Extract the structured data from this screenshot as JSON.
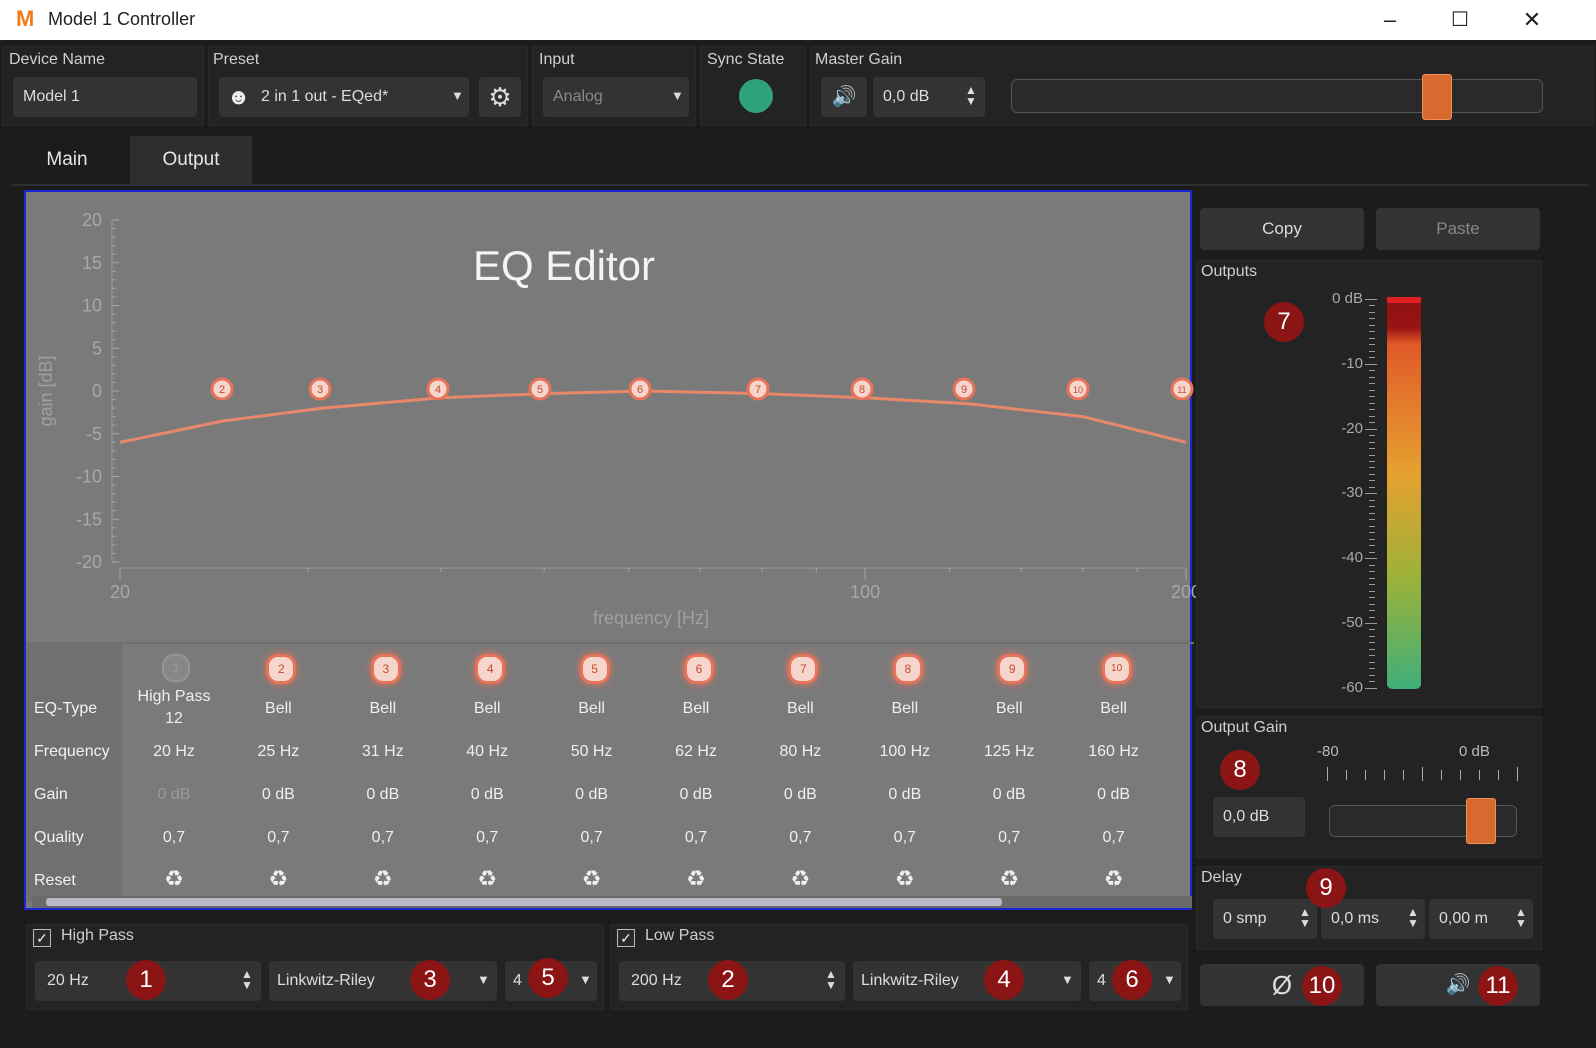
{
  "window": {
    "title": "Model 1 Controller",
    "logo": "M",
    "minimize": "–",
    "maximize": "☐",
    "close": "✕"
  },
  "header": {
    "device_name_label": "Device Name",
    "device_name_value": "Model 1",
    "preset_label": "Preset",
    "preset_value": "2 in 1 out - EQed*",
    "input_label": "Input",
    "input_value": "Analog",
    "sync_label": "Sync State",
    "sync_color": "#2fa27a",
    "master_gain_label": "Master Gain",
    "master_gain_value": "0,0 dB",
    "master_gain_level": 0.8
  },
  "tabs": [
    {
      "label": "Main"
    },
    {
      "label": "Output"
    }
  ],
  "eq": {
    "title": "EQ Editor",
    "ylabel": "gain [dB]",
    "xlabel": "frequency [Hz]",
    "y_ticks": [
      "20",
      "15",
      "10",
      "5",
      "0",
      "-5",
      "-10",
      "-15",
      "-20"
    ],
    "x_ticks": [
      "20",
      "100",
      "200"
    ],
    "markers": [
      "2",
      "3",
      "4",
      "5",
      "6",
      "7",
      "8",
      "9",
      "10",
      "11"
    ]
  },
  "chart_data": {
    "type": "line",
    "title": "EQ Editor",
    "xlabel": "frequency [Hz]",
    "ylabel": "gain [dB]",
    "xscale": "log",
    "xlim": [
      20,
      200
    ],
    "ylim": [
      -20,
      20
    ],
    "grid": true,
    "x": [
      20,
      25,
      31,
      40,
      50,
      62,
      80,
      100,
      125,
      160,
      200
    ],
    "y": [
      -6,
      -3.5,
      -2,
      -0.8,
      -0.3,
      0,
      -0.3,
      -0.8,
      -1.5,
      -3,
      -6
    ]
  },
  "table": {
    "row_labels": [
      "EQ-Type",
      "Frequency",
      "Gain",
      "Quality",
      "Reset"
    ],
    "bands": [
      {
        "num": "1",
        "type": "High Pass",
        "type2": "12",
        "freq": "20 Hz",
        "gain": "0 dB",
        "q": "0,7"
      },
      {
        "num": "2",
        "type": "Bell",
        "type2": "",
        "freq": "25 Hz",
        "gain": "0 dB",
        "q": "0,7"
      },
      {
        "num": "3",
        "type": "Bell",
        "type2": "",
        "freq": "31 Hz",
        "gain": "0 dB",
        "q": "0,7"
      },
      {
        "num": "4",
        "type": "Bell",
        "type2": "",
        "freq": "40 Hz",
        "gain": "0 dB",
        "q": "0,7"
      },
      {
        "num": "5",
        "type": "Bell",
        "type2": "",
        "freq": "50 Hz",
        "gain": "0 dB",
        "q": "0,7"
      },
      {
        "num": "6",
        "type": "Bell",
        "type2": "",
        "freq": "62 Hz",
        "gain": "0 dB",
        "q": "0,7"
      },
      {
        "num": "7",
        "type": "Bell",
        "type2": "",
        "freq": "80 Hz",
        "gain": "0 dB",
        "q": "0,7"
      },
      {
        "num": "8",
        "type": "Bell",
        "type2": "",
        "freq": "100 Hz",
        "gain": "0 dB",
        "q": "0,7"
      },
      {
        "num": "9",
        "type": "Bell",
        "type2": "",
        "freq": "125 Hz",
        "gain": "0 dB",
        "q": "0,7"
      },
      {
        "num": "10",
        "type": "Bell",
        "type2": "",
        "freq": "160 Hz",
        "gain": "0 dB",
        "q": "0,7"
      }
    ]
  },
  "filters": {
    "high_pass_label": "High Pass",
    "high_pass_freq": "20 Hz",
    "high_pass_type": "Linkwitz-Riley",
    "high_pass_order": "4",
    "low_pass_label": "Low Pass",
    "low_pass_freq": "200 Hz",
    "low_pass_type": "Linkwitz-Riley",
    "low_pass_order": "4"
  },
  "right": {
    "copy": "Copy",
    "paste": "Paste",
    "outputs_label": "Outputs",
    "meter_ticks": [
      "0 dB",
      "-10",
      "-20",
      "-30",
      "-40",
      "-50",
      "-60"
    ],
    "output_gain_label": "Output Gain",
    "og_min": "-80",
    "og_max": "0 dB",
    "og_value": "0,0 dB",
    "delay_label": "Delay",
    "delay_smp": "0 smp",
    "delay_ms": "0,0 ms",
    "delay_m": "0,00 m",
    "phase_symbol": "Ø"
  },
  "badges": [
    "1",
    "2",
    "3",
    "4",
    "5",
    "6",
    "7",
    "8",
    "9",
    "10",
    "11"
  ]
}
